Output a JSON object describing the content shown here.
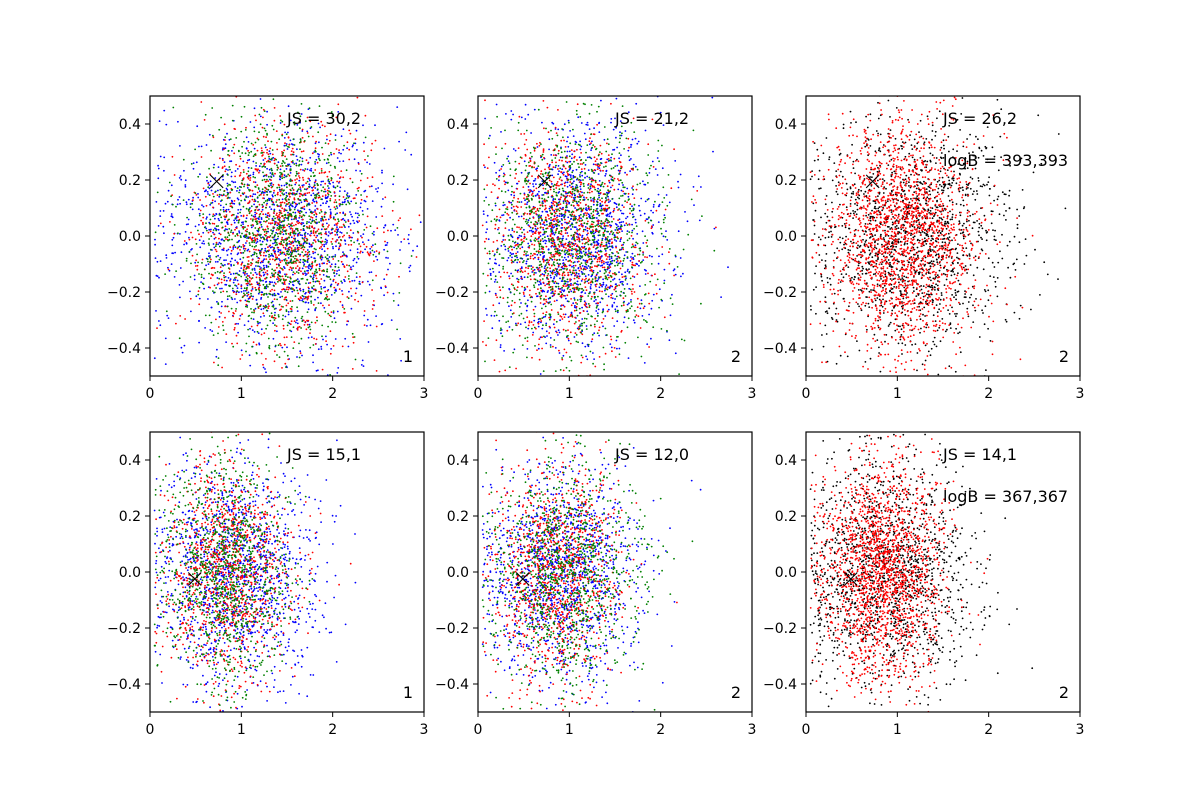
{
  "chart_data": [
    {
      "type": "scatter",
      "xlim": [
        0,
        3
      ],
      "ylim": [
        -0.5,
        0.5
      ],
      "x_ticks": [
        0,
        1,
        2,
        3
      ],
      "y_ticks": [
        -0.4,
        -0.2,
        0.0,
        0.2,
        0.4
      ],
      "x_tick_labels": [
        "0",
        "1",
        "2",
        "3"
      ],
      "y_tick_labels": [
        "−0.4",
        "−0.2",
        "0.0",
        "0.2",
        "0.4"
      ],
      "annotation_js": "JS = 30,2",
      "annotation_logb": "",
      "corner_label": "1",
      "marker": {
        "x": 0.73,
        "y": 0.195
      },
      "series": [
        {
          "color": "#0000ff",
          "count": 1400,
          "x_center": 1.45,
          "x_spread": 0.62,
          "y_center": 0.0,
          "y_spread": 0.2
        },
        {
          "color": "#ff0000",
          "count": 1100,
          "x_center": 1.45,
          "x_spread": 0.5,
          "y_center": 0.0,
          "y_spread": 0.2
        },
        {
          "color": "#008000",
          "count": 1100,
          "x_center": 1.4,
          "x_spread": 0.45,
          "y_center": 0.0,
          "y_spread": 0.2
        }
      ],
      "grid": false
    },
    {
      "type": "scatter",
      "xlim": [
        0,
        3
      ],
      "ylim": [
        -0.5,
        0.5
      ],
      "x_ticks": [
        0,
        1,
        2,
        3
      ],
      "y_ticks": [
        -0.4,
        -0.2,
        0.0,
        0.2,
        0.4
      ],
      "x_tick_labels": [
        "0",
        "1",
        "2",
        "3"
      ],
      "y_tick_labels": [
        "−0.4",
        "−0.2",
        "0.0",
        "0.2",
        "0.4"
      ],
      "annotation_js": "JS = 21,2",
      "annotation_logb": "",
      "corner_label": "2",
      "marker": {
        "x": 0.73,
        "y": 0.195
      },
      "series": [
        {
          "color": "#0000ff",
          "count": 1300,
          "x_center": 1.1,
          "x_spread": 0.5,
          "y_center": 0.0,
          "y_spread": 0.2
        },
        {
          "color": "#ff0000",
          "count": 1100,
          "x_center": 1.0,
          "x_spread": 0.42,
          "y_center": 0.0,
          "y_spread": 0.2
        },
        {
          "color": "#008000",
          "count": 1100,
          "x_center": 1.05,
          "x_spread": 0.45,
          "y_center": 0.0,
          "y_spread": 0.2
        }
      ],
      "grid": false
    },
    {
      "type": "scatter",
      "xlim": [
        0,
        3
      ],
      "ylim": [
        -0.5,
        0.5
      ],
      "x_ticks": [
        0,
        1,
        2,
        3
      ],
      "y_ticks": [
        -0.4,
        -0.2,
        0.0,
        0.2,
        0.4
      ],
      "x_tick_labels": [
        "0",
        "1",
        "2",
        "3"
      ],
      "y_tick_labels": [
        "−0.4",
        "−0.2",
        "0.0",
        "0.2",
        "0.4"
      ],
      "annotation_js": "JS = 26,2",
      "annotation_logb": "logB = 393,393",
      "corner_label": "2",
      "marker": {
        "x": 0.73,
        "y": 0.195
      },
      "series": [
        {
          "color": "#000000",
          "count": 1500,
          "x_center": 1.15,
          "x_spread": 0.55,
          "y_center": 0.0,
          "y_spread": 0.2
        },
        {
          "color": "#ff0000",
          "count": 1800,
          "x_center": 1.05,
          "x_spread": 0.4,
          "y_center": 0.0,
          "y_spread": 0.2
        }
      ],
      "grid": false
    },
    {
      "type": "scatter",
      "xlim": [
        0,
        3
      ],
      "ylim": [
        -0.5,
        0.5
      ],
      "x_ticks": [
        0,
        1,
        2,
        3
      ],
      "y_ticks": [
        -0.4,
        -0.2,
        0.0,
        0.2,
        0.4
      ],
      "x_tick_labels": [
        "0",
        "1",
        "2",
        "3"
      ],
      "y_tick_labels": [
        "−0.4",
        "−0.2",
        "0.0",
        "0.2",
        "0.4"
      ],
      "annotation_js": "JS = 15,1",
      "annotation_logb": "",
      "corner_label": "1",
      "marker": {
        "x": 0.49,
        "y": -0.025
      },
      "series": [
        {
          "color": "#0000ff",
          "count": 1300,
          "x_center": 0.95,
          "x_spread": 0.45,
          "y_center": 0.0,
          "y_spread": 0.2
        },
        {
          "color": "#ff0000",
          "count": 1100,
          "x_center": 0.85,
          "x_spread": 0.35,
          "y_center": 0.0,
          "y_spread": 0.2
        },
        {
          "color": "#008000",
          "count": 1100,
          "x_center": 0.85,
          "x_spread": 0.35,
          "y_center": 0.0,
          "y_spread": 0.2
        }
      ],
      "grid": false
    },
    {
      "type": "scatter",
      "xlim": [
        0,
        3
      ],
      "ylim": [
        -0.5,
        0.5
      ],
      "x_ticks": [
        0,
        1,
        2,
        3
      ],
      "y_ticks": [
        -0.4,
        -0.2,
        0.0,
        0.2,
        0.4
      ],
      "x_tick_labels": [
        "0",
        "1",
        "2",
        "3"
      ],
      "y_tick_labels": [
        "−0.4",
        "−0.2",
        "0.0",
        "0.2",
        "0.4"
      ],
      "annotation_js": "JS = 12,0",
      "annotation_logb": "",
      "corner_label": "2",
      "marker": {
        "x": 0.49,
        "y": -0.025
      },
      "series": [
        {
          "color": "#0000ff",
          "count": 1300,
          "x_center": 0.9,
          "x_spread": 0.42,
          "y_center": 0.0,
          "y_spread": 0.2
        },
        {
          "color": "#ff0000",
          "count": 1100,
          "x_center": 0.85,
          "x_spread": 0.35,
          "y_center": 0.0,
          "y_spread": 0.2
        },
        {
          "color": "#008000",
          "count": 1100,
          "x_center": 0.95,
          "x_spread": 0.42,
          "y_center": 0.0,
          "y_spread": 0.2
        }
      ],
      "grid": false
    },
    {
      "type": "scatter",
      "xlim": [
        0,
        3
      ],
      "ylim": [
        -0.5,
        0.5
      ],
      "x_ticks": [
        0,
        1,
        2,
        3
      ],
      "y_ticks": [
        -0.4,
        -0.2,
        0.0,
        0.2,
        0.4
      ],
      "x_tick_labels": [
        "0",
        "1",
        "2",
        "3"
      ],
      "y_tick_labels": [
        "−0.4",
        "−0.2",
        "0.0",
        "0.2",
        "0.4"
      ],
      "annotation_js": "JS = 14,1",
      "annotation_logb": "logB = 367,367",
      "corner_label": "2",
      "marker": {
        "x": 0.49,
        "y": -0.025
      },
      "series": [
        {
          "color": "#000000",
          "count": 1500,
          "x_center": 0.9,
          "x_spread": 0.45,
          "y_center": 0.0,
          "y_spread": 0.2
        },
        {
          "color": "#ff0000",
          "count": 1800,
          "x_center": 0.82,
          "x_spread": 0.33,
          "y_center": 0.0,
          "y_spread": 0.2
        }
      ],
      "grid": false
    }
  ]
}
